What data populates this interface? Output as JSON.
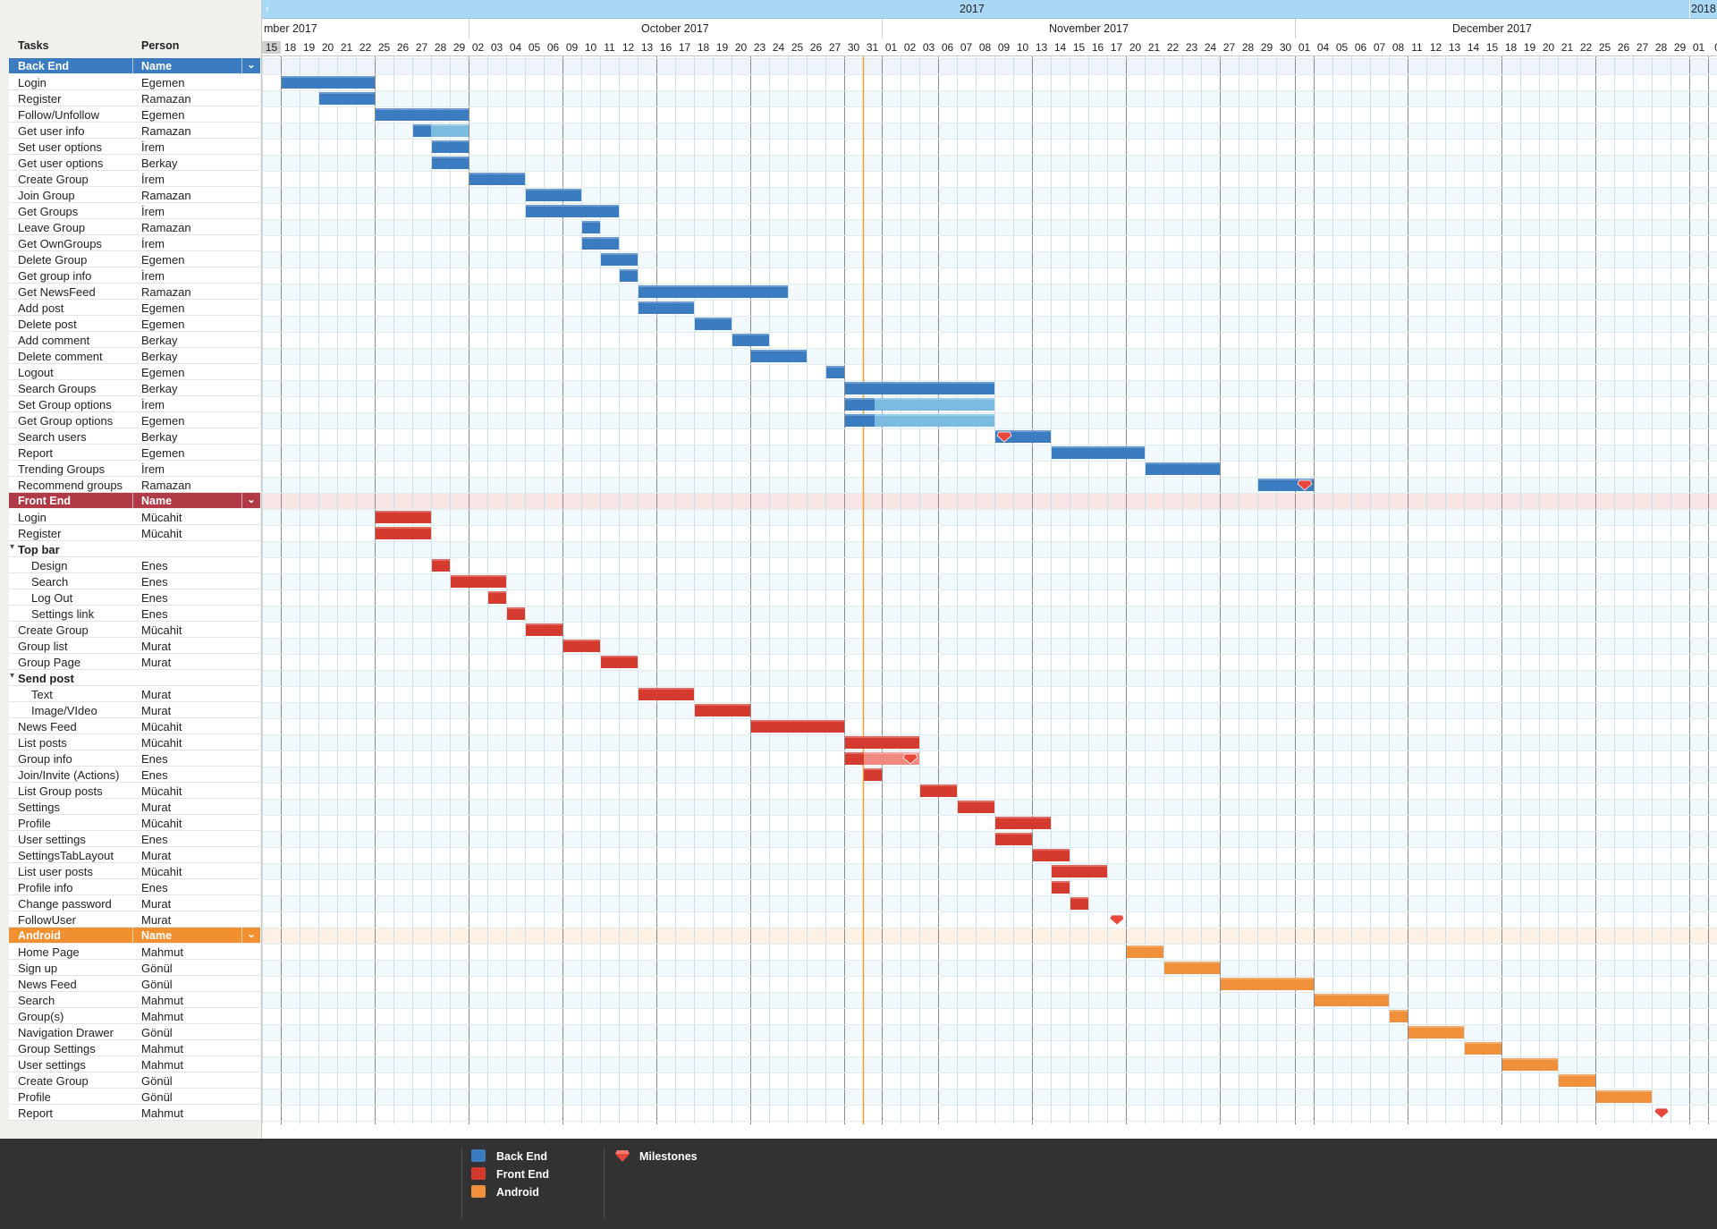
{
  "header": {
    "task_col": "Tasks",
    "person_col": "Person"
  },
  "timeline": {
    "year": "2017",
    "year_next_partial": "2018",
    "months": [
      "mber 2017",
      "October 2017",
      "November 2017",
      "December 2017"
    ],
    "days": [
      "15",
      "18",
      "19",
      "20",
      "21",
      "22",
      "25",
      "26",
      "27",
      "28",
      "29",
      "02",
      "03",
      "04",
      "05",
      "06",
      "09",
      "10",
      "11",
      "12",
      "13",
      "16",
      "17",
      "18",
      "19",
      "20",
      "23",
      "24",
      "25",
      "26",
      "27",
      "30",
      "31",
      "01",
      "02",
      "03",
      "06",
      "07",
      "08",
      "09",
      "10",
      "13",
      "14",
      "15",
      "16",
      "17",
      "20",
      "21",
      "22",
      "23",
      "24",
      "27",
      "28",
      "29",
      "30",
      "01",
      "04",
      "05",
      "06",
      "07",
      "08",
      "11",
      "12",
      "13",
      "14",
      "15",
      "18",
      "19",
      "20",
      "21",
      "22",
      "25",
      "26",
      "27",
      "28",
      "29",
      "01",
      "0"
    ],
    "highlight_day": "15",
    "today_after_day": "30 Oct"
  },
  "groups": [
    {
      "name": "Back  End",
      "col": "Name",
      "color": "#3b7bbf"
    },
    {
      "name": "Front End",
      "col": "Name",
      "color": "#b03a45"
    },
    {
      "name": "Android",
      "col": "Name",
      "color": "#f09030"
    }
  ],
  "rows": [
    {
      "t": "group",
      "g": 0
    },
    {
      "task": "Login",
      "person": "Egemen"
    },
    {
      "task": "Register",
      "person": "Ramazan"
    },
    {
      "task": "Follow/Unfollow",
      "person": "Egemen"
    },
    {
      "task": "Get user info",
      "person": "Ramazan"
    },
    {
      "task": "Set user options",
      "person": "İrem"
    },
    {
      "task": "Get user options",
      "person": "Berkay"
    },
    {
      "task": "Create Group",
      "person": "İrem"
    },
    {
      "task": "Join Group",
      "person": "Ramazan"
    },
    {
      "task": "Get Groups",
      "person": "İrem"
    },
    {
      "task": "Leave Group",
      "person": "Ramazan"
    },
    {
      "task": "Get OwnGroups",
      "person": "İrem"
    },
    {
      "task": "Delete Group",
      "person": "Egemen"
    },
    {
      "task": "Get group info",
      "person": "İrem"
    },
    {
      "task": "Get NewsFeed",
      "person": "Ramazan"
    },
    {
      "task": "Add post",
      "person": "Egemen"
    },
    {
      "task": "Delete post",
      "person": "Egemen"
    },
    {
      "task": "Add comment",
      "person": "Berkay"
    },
    {
      "task": "Delete comment",
      "person": "Berkay"
    },
    {
      "task": "Logout",
      "person": "Egemen"
    },
    {
      "task": "Search Groups",
      "person": "Berkay"
    },
    {
      "task": "Set Group options",
      "person": "İrem"
    },
    {
      "task": "Get Group options",
      "person": "Egemen"
    },
    {
      "task": "Search users",
      "person": "Berkay"
    },
    {
      "task": "Report",
      "person": "Egemen"
    },
    {
      "task": "Trending Groups",
      "person": "İrem"
    },
    {
      "task": "Recommend groups",
      "person": "Ramazan"
    },
    {
      "t": "group",
      "g": 1
    },
    {
      "task": "Login",
      "person": "Mücahit"
    },
    {
      "task": "Register",
      "person": "Mücahit"
    },
    {
      "task": "Top bar",
      "person": "",
      "section": true
    },
    {
      "task": "Design",
      "person": "Enes",
      "sub": true
    },
    {
      "task": "Search",
      "person": "Enes",
      "sub": true
    },
    {
      "task": "Log Out",
      "person": "Enes",
      "sub": true
    },
    {
      "task": "Settings link",
      "person": "Enes",
      "sub": true
    },
    {
      "task": "Create Group",
      "person": "Mücahit"
    },
    {
      "task": "Group list",
      "person": "Murat"
    },
    {
      "task": "Group Page",
      "person": "Murat"
    },
    {
      "task": "Send post",
      "person": "",
      "section": true
    },
    {
      "task": "Text",
      "person": "Murat",
      "sub": true
    },
    {
      "task": "Image/VIdeo",
      "person": "Murat",
      "sub": true
    },
    {
      "task": "News Feed",
      "person": "Mücahit"
    },
    {
      "task": "List posts",
      "person": "Mücahit"
    },
    {
      "task": "Group info",
      "person": "Enes"
    },
    {
      "task": "Join/Invite (Actions)",
      "person": "Enes"
    },
    {
      "task": "List Group posts",
      "person": "Mücahit"
    },
    {
      "task": "Settings",
      "person": "Murat"
    },
    {
      "task": "Profile",
      "person": "Mücahit"
    },
    {
      "task": "User settings",
      "person": "Enes"
    },
    {
      "task": "SettingsTabLayout",
      "person": "Murat"
    },
    {
      "task": "List user posts",
      "person": "Mücahit"
    },
    {
      "task": "Profile info",
      "person": "Enes"
    },
    {
      "task": "Change password",
      "person": "Murat"
    },
    {
      "task": "FollowUser",
      "person": "Murat"
    },
    {
      "t": "group",
      "g": 2
    },
    {
      "task": "Home Page",
      "person": "Mahmut"
    },
    {
      "task": "Sign up",
      "person": "Gönül"
    },
    {
      "task": "News Feed",
      "person": "Gönül"
    },
    {
      "task": "Search",
      "person": "Mahmut"
    },
    {
      "task": "Group(s)",
      "person": "Mahmut"
    },
    {
      "task": "Navigation Drawer",
      "person": "Gönül"
    },
    {
      "task": "Group Settings",
      "person": "Mahmut"
    },
    {
      "task": "User settings",
      "person": "Mahmut"
    },
    {
      "task": "Create Group",
      "person": "Gönül"
    },
    {
      "task": "Profile",
      "person": "Gönül"
    },
    {
      "task": "Report",
      "person": "Mahmut"
    }
  ],
  "chart_data": {
    "type": "gantt",
    "x_unit": "working day (2017-09-15 to 2017-12-29)",
    "bars": [
      {
        "row": 1,
        "start": "18 Sep",
        "end": "22 Sep",
        "series": "Back End"
      },
      {
        "row": 2,
        "start": "20 Sep",
        "end": "22 Sep",
        "series": "Back End"
      },
      {
        "row": 3,
        "start": "25 Sep",
        "end": "29 Sep",
        "series": "Back End"
      },
      {
        "row": 4,
        "start": "27 Sep",
        "end": "29 Sep",
        "series": "Back End",
        "progress": 0.33
      },
      {
        "row": 5,
        "start": "28 Sep",
        "end": "29 Sep",
        "series": "Back End"
      },
      {
        "row": 6,
        "start": "28 Sep",
        "end": "29 Sep",
        "series": "Back End"
      },
      {
        "row": 7,
        "start": "02 Oct",
        "end": "04 Oct",
        "series": "Back End"
      },
      {
        "row": 8,
        "start": "05 Oct",
        "end": "09 Oct",
        "series": "Back End"
      },
      {
        "row": 9,
        "start": "05 Oct",
        "end": "11 Oct",
        "series": "Back End"
      },
      {
        "row": 10,
        "start": "10 Oct",
        "end": "10 Oct",
        "series": "Back End"
      },
      {
        "row": 11,
        "start": "10 Oct",
        "end": "11 Oct",
        "series": "Back End"
      },
      {
        "row": 12,
        "start": "11 Oct",
        "end": "12 Oct",
        "series": "Back End"
      },
      {
        "row": 13,
        "start": "12 Oct",
        "end": "12 Oct",
        "series": "Back End"
      },
      {
        "row": 14,
        "start": "13 Oct",
        "end": "24 Oct",
        "series": "Back End"
      },
      {
        "row": 15,
        "start": "13 Oct",
        "end": "17 Oct",
        "series": "Back End"
      },
      {
        "row": 16,
        "start": "18 Oct",
        "end": "19 Oct",
        "series": "Back End"
      },
      {
        "row": 17,
        "start": "20 Oct",
        "end": "23 Oct",
        "series": "Back End"
      },
      {
        "row": 18,
        "start": "23 Oct",
        "end": "25 Oct",
        "series": "Back End"
      },
      {
        "row": 19,
        "start": "27 Oct",
        "end": "27 Oct",
        "series": "Back End"
      },
      {
        "row": 20,
        "start": "30 Oct",
        "end": "08 Nov",
        "series": "Back End"
      },
      {
        "row": 21,
        "start": "30 Oct",
        "end": "08 Nov",
        "series": "Back End",
        "progress": 0.2
      },
      {
        "row": 22,
        "start": "30 Oct",
        "end": "08 Nov",
        "series": "Back End",
        "progress": 0.2
      },
      {
        "row": 23,
        "start": "09 Nov",
        "end": "13 Nov",
        "series": "Back End",
        "milestone_start": true
      },
      {
        "row": 24,
        "start": "14 Nov",
        "end": "20 Nov",
        "series": "Back End"
      },
      {
        "row": 25,
        "start": "21 Nov",
        "end": "24 Nov",
        "series": "Back End"
      },
      {
        "row": 26,
        "start": "29 Nov",
        "end": "01 Dec",
        "series": "Back End",
        "milestone_end": true
      },
      {
        "row": 28,
        "start": "25 Sep",
        "end": "27 Sep",
        "series": "Front End"
      },
      {
        "row": 29,
        "start": "25 Sep",
        "end": "27 Sep",
        "series": "Front End"
      },
      {
        "row": 31,
        "start": "28 Sep",
        "end": "28 Sep",
        "series": "Front End"
      },
      {
        "row": 32,
        "start": "29 Sep",
        "end": "03 Oct",
        "series": "Front End"
      },
      {
        "row": 33,
        "start": "03 Oct",
        "end": "03 Oct",
        "series": "Front End"
      },
      {
        "row": 34,
        "start": "04 Oct",
        "end": "04 Oct",
        "series": "Front End"
      },
      {
        "row": 35,
        "start": "05 Oct",
        "end": "06 Oct",
        "series": "Front End"
      },
      {
        "row": 36,
        "start": "09 Oct",
        "end": "10 Oct",
        "series": "Front End"
      },
      {
        "row": 37,
        "start": "11 Oct",
        "end": "12 Oct",
        "series": "Front End"
      },
      {
        "row": 39,
        "start": "13 Oct",
        "end": "17 Oct",
        "series": "Front End"
      },
      {
        "row": 40,
        "start": "18 Oct",
        "end": "20 Oct",
        "series": "Front End"
      },
      {
        "row": 41,
        "start": "23 Oct",
        "end": "27 Oct",
        "series": "Front End"
      },
      {
        "row": 42,
        "start": "30 Oct",
        "end": "02 Nov",
        "series": "Front End"
      },
      {
        "row": 43,
        "start": "30 Oct",
        "end": "02 Nov",
        "series": "Front End",
        "progress": 0.25,
        "milestone_end": true
      },
      {
        "row": 44,
        "start": "31 Oct",
        "end": "31 Oct",
        "series": "Front End"
      },
      {
        "row": 45,
        "start": "03 Nov",
        "end": "06 Nov",
        "series": "Front End"
      },
      {
        "row": 46,
        "start": "07 Nov",
        "end": "08 Nov",
        "series": "Front End"
      },
      {
        "row": 47,
        "start": "09 Nov",
        "end": "13 Nov",
        "series": "Front End"
      },
      {
        "row": 48,
        "start": "09 Nov",
        "end": "10 Nov",
        "series": "Front End"
      },
      {
        "row": 49,
        "start": "13 Nov",
        "end": "14 Nov",
        "series": "Front End"
      },
      {
        "row": 50,
        "start": "14 Nov",
        "end": "16 Nov",
        "series": "Front End"
      },
      {
        "row": 51,
        "start": "14 Nov",
        "end": "14 Nov",
        "series": "Front End"
      },
      {
        "row": 52,
        "start": "15 Nov",
        "end": "15 Nov",
        "series": "Front End"
      },
      {
        "row": 53,
        "start": "17 Nov",
        "end": "17 Nov",
        "series": "Front End",
        "milestone": true
      },
      {
        "row": 55,
        "start": "20 Nov",
        "end": "21 Nov",
        "series": "Android"
      },
      {
        "row": 56,
        "start": "22 Nov",
        "end": "24 Nov",
        "series": "Android"
      },
      {
        "row": 57,
        "start": "27 Nov",
        "end": "01 Dec",
        "series": "Android"
      },
      {
        "row": 58,
        "start": "04 Dec",
        "end": "07 Dec",
        "series": "Android"
      },
      {
        "row": 59,
        "start": "08 Dec",
        "end": "08 Dec",
        "series": "Android"
      },
      {
        "row": 60,
        "start": "11 Dec",
        "end": "13 Dec",
        "series": "Android"
      },
      {
        "row": 61,
        "start": "14 Dec",
        "end": "15 Dec",
        "series": "Android"
      },
      {
        "row": 62,
        "start": "18 Dec",
        "end": "20 Dec",
        "series": "Android"
      },
      {
        "row": 63,
        "start": "21 Dec",
        "end": "22 Dec",
        "series": "Android"
      },
      {
        "row": 64,
        "start": "25 Dec",
        "end": "27 Dec",
        "series": "Android"
      },
      {
        "row": 65,
        "start": "28 Dec",
        "end": "28 Dec",
        "series": "Android",
        "milestone": true
      }
    ]
  },
  "legend": {
    "items": [
      {
        "label": "Back End",
        "color": "#3b7bbf"
      },
      {
        "label": "Front End",
        "color": "#d43a2e"
      },
      {
        "label": "Android",
        "color": "#f0903a"
      }
    ],
    "milestones_label": "Milestones"
  }
}
